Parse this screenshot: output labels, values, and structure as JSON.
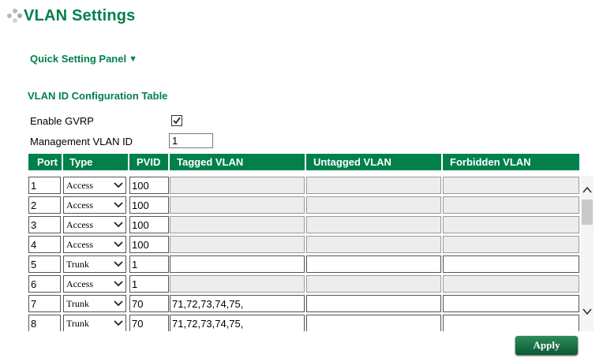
{
  "page": {
    "title": "VLAN Settings"
  },
  "quick_setting": {
    "label": "Quick Setting Panel",
    "toggle_glyph": "▼"
  },
  "section": {
    "title": "VLAN ID Configuration Table"
  },
  "gvrp": {
    "label": "Enable GVRP",
    "checked": true
  },
  "management": {
    "label": "Management VLAN ID",
    "value": "1"
  },
  "table": {
    "headers": [
      "Port",
      "Type",
      "PVID",
      "Tagged VLAN",
      "Untagged VLAN",
      "Forbidden VLAN"
    ],
    "rows": [
      {
        "port": "1",
        "type": "Access",
        "pvid": "100",
        "tagged": "",
        "untagged": "",
        "forbidden": "",
        "tagged_disabled": true
      },
      {
        "port": "2",
        "type": "Access",
        "pvid": "100",
        "tagged": "",
        "untagged": "",
        "forbidden": "",
        "tagged_disabled": true
      },
      {
        "port": "3",
        "type": "Access",
        "pvid": "100",
        "tagged": "",
        "untagged": "",
        "forbidden": "",
        "tagged_disabled": true
      },
      {
        "port": "4",
        "type": "Access",
        "pvid": "100",
        "tagged": "",
        "untagged": "",
        "forbidden": "",
        "tagged_disabled": true
      },
      {
        "port": "5",
        "type": "Trunk",
        "pvid": "1",
        "tagged": "",
        "untagged": "",
        "forbidden": "",
        "tagged_disabled": false
      },
      {
        "port": "6",
        "type": "Access",
        "pvid": "1",
        "tagged": "",
        "untagged": "",
        "forbidden": "",
        "tagged_disabled": true
      },
      {
        "port": "7",
        "type": "Trunk",
        "pvid": "70",
        "tagged": "71,72,73,74,75,",
        "untagged": "",
        "forbidden": "",
        "tagged_disabled": false
      },
      {
        "port": "8",
        "type": "Trunk",
        "pvid": "70",
        "tagged": "71,72,73,74,75,",
        "untagged": "",
        "forbidden": "",
        "tagged_disabled": false
      }
    ]
  },
  "apply_button": {
    "label": "Apply"
  },
  "colors": {
    "brand_green": "#00804b",
    "disabled_field": "#ededed"
  }
}
